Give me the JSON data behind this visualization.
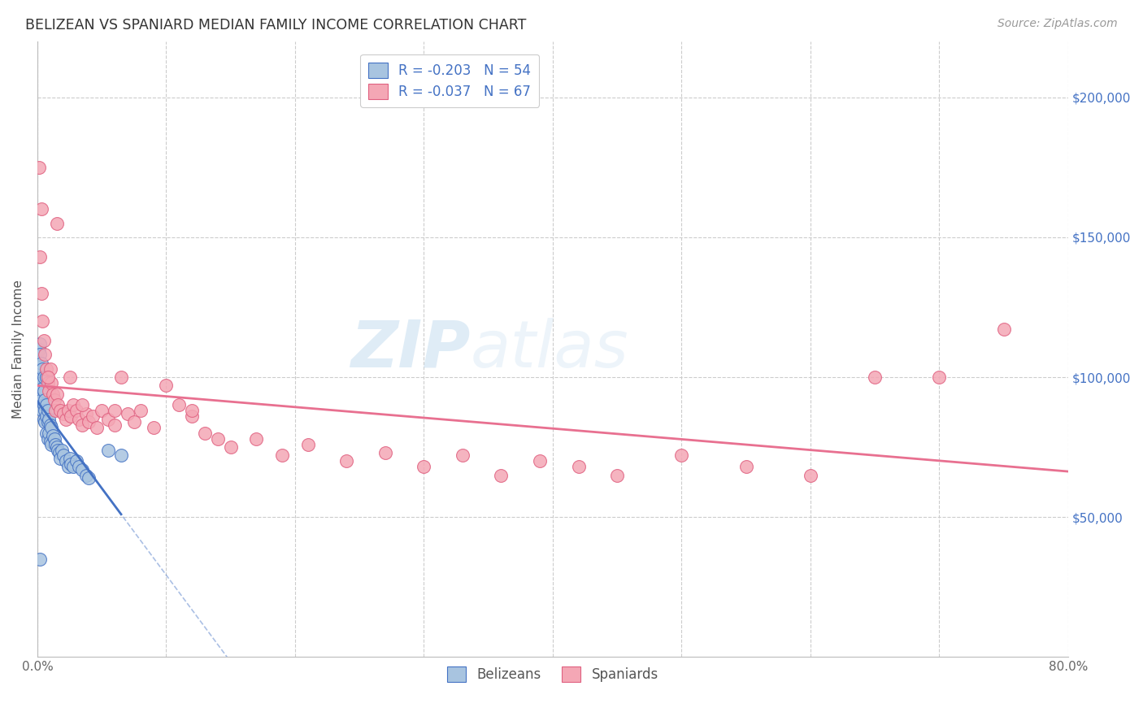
{
  "title": "BELIZEAN VS SPANIARD MEDIAN FAMILY INCOME CORRELATION CHART",
  "source": "Source: ZipAtlas.com",
  "ylabel": "Median Family Income",
  "xlim": [
    0.0,
    0.8
  ],
  "ylim": [
    0,
    220000
  ],
  "xtick_positions": [
    0.0,
    0.1,
    0.2,
    0.3,
    0.4,
    0.5,
    0.6,
    0.7,
    0.8
  ],
  "xticklabels": [
    "0.0%",
    "",
    "",
    "",
    "",
    "",
    "",
    "",
    "80.0%"
  ],
  "ytick_positions": [
    50000,
    100000,
    150000,
    200000
  ],
  "ytick_labels": [
    "$50,000",
    "$100,000",
    "$150,000",
    "$200,000"
  ],
  "belizean_color": "#a8c4e0",
  "spaniard_color": "#f4a7b5",
  "belizean_edge_color": "#4472c4",
  "spaniard_edge_color": "#e06080",
  "belizean_line_color": "#4472c4",
  "spaniard_line_color": "#e87090",
  "belizean_R": -0.203,
  "belizean_N": 54,
  "spaniard_R": -0.037,
  "spaniard_N": 67,
  "grid_color": "#cccccc",
  "background_color": "#ffffff",
  "right_axis_color": "#4472c4",
  "legend_text_color": "#4472c4",
  "belizean_x": [
    0.001,
    0.001,
    0.002,
    0.002,
    0.002,
    0.003,
    0.003,
    0.003,
    0.003,
    0.004,
    0.004,
    0.004,
    0.005,
    0.005,
    0.005,
    0.005,
    0.006,
    0.006,
    0.006,
    0.007,
    0.007,
    0.007,
    0.008,
    0.008,
    0.008,
    0.009,
    0.009,
    0.01,
    0.01,
    0.011,
    0.011,
    0.012,
    0.013,
    0.014,
    0.015,
    0.016,
    0.017,
    0.018,
    0.019,
    0.02,
    0.022,
    0.024,
    0.025,
    0.026,
    0.028,
    0.03,
    0.032,
    0.035,
    0.038,
    0.04,
    0.002,
    0.007,
    0.055,
    0.065
  ],
  "belizean_y": [
    110000,
    104000,
    112000,
    108000,
    95000,
    105000,
    100000,
    98000,
    92000,
    103000,
    96000,
    88000,
    100000,
    95000,
    90000,
    85000,
    92000,
    88000,
    84000,
    90000,
    86000,
    80000,
    88000,
    84000,
    78000,
    85000,
    80000,
    83000,
    77000,
    82000,
    76000,
    79000,
    78000,
    76000,
    75000,
    74000,
    73000,
    71000,
    74000,
    72000,
    70000,
    68000,
    71000,
    69000,
    68000,
    70000,
    68000,
    67000,
    65000,
    64000,
    35000,
    100000,
    74000,
    72000
  ],
  "spaniard_x": [
    0.001,
    0.002,
    0.003,
    0.004,
    0.005,
    0.006,
    0.007,
    0.008,
    0.009,
    0.01,
    0.011,
    0.012,
    0.013,
    0.014,
    0.015,
    0.016,
    0.018,
    0.02,
    0.022,
    0.024,
    0.026,
    0.028,
    0.03,
    0.032,
    0.035,
    0.038,
    0.04,
    0.043,
    0.046,
    0.05,
    0.055,
    0.06,
    0.065,
    0.07,
    0.075,
    0.08,
    0.09,
    0.1,
    0.11,
    0.12,
    0.13,
    0.14,
    0.15,
    0.17,
    0.19,
    0.21,
    0.24,
    0.27,
    0.3,
    0.33,
    0.36,
    0.39,
    0.42,
    0.45,
    0.5,
    0.55,
    0.6,
    0.65,
    0.7,
    0.75,
    0.003,
    0.008,
    0.015,
    0.025,
    0.035,
    0.06,
    0.12
  ],
  "spaniard_y": [
    175000,
    143000,
    130000,
    120000,
    113000,
    108000,
    103000,
    98000,
    95000,
    103000,
    98000,
    94000,
    92000,
    88000,
    94000,
    90000,
    88000,
    87000,
    85000,
    88000,
    86000,
    90000,
    88000,
    85000,
    83000,
    87000,
    84000,
    86000,
    82000,
    88000,
    85000,
    83000,
    100000,
    87000,
    84000,
    88000,
    82000,
    97000,
    90000,
    86000,
    80000,
    78000,
    75000,
    78000,
    72000,
    76000,
    70000,
    73000,
    68000,
    72000,
    65000,
    70000,
    68000,
    65000,
    72000,
    68000,
    65000,
    100000,
    100000,
    117000,
    160000,
    100000,
    155000,
    100000,
    90000,
    88000,
    88000
  ]
}
